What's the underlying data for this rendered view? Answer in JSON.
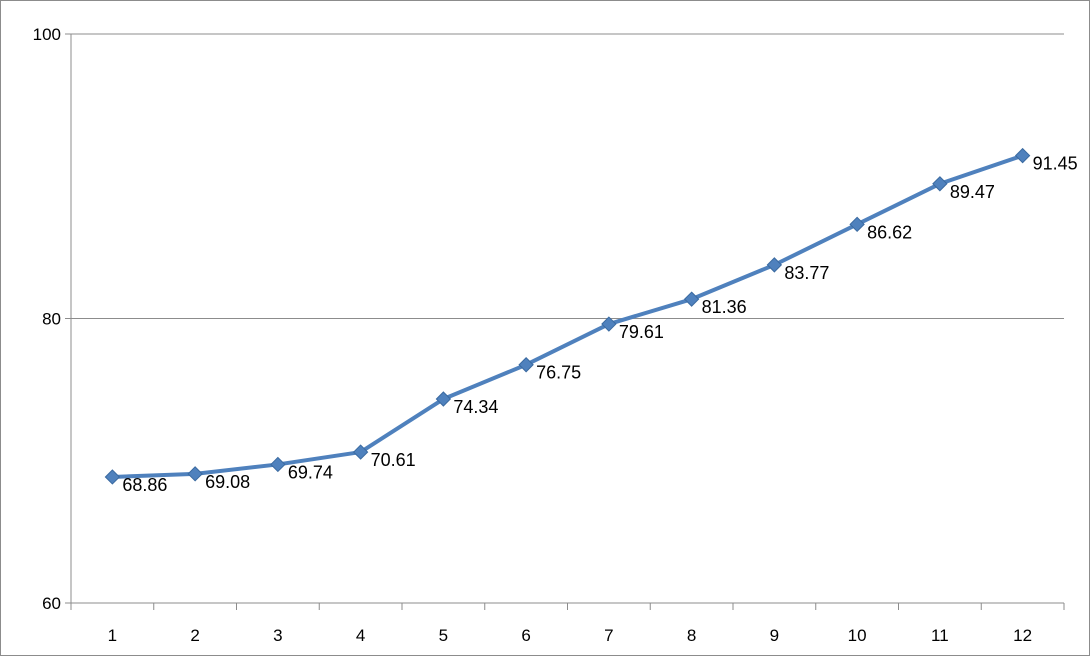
{
  "chart_data": {
    "type": "line",
    "title": "",
    "xlabel": "",
    "ylabel": "",
    "categories": [
      "1",
      "2",
      "3",
      "4",
      "5",
      "6",
      "7",
      "8",
      "9",
      "10",
      "11",
      "12"
    ],
    "series": [
      {
        "values": [
          68.86,
          69.08,
          69.74,
          70.61,
          74.34,
          76.75,
          79.61,
          81.36,
          83.77,
          86.62,
          89.47,
          91.45
        ]
      }
    ],
    "data_labels": [
      "68.86",
      "69.08",
      "69.74",
      "70.61",
      "74.34",
      "76.75",
      "79.61",
      "81.36",
      "83.77",
      "86.62",
      "89.47",
      "91.45"
    ],
    "ylim": [
      60,
      100
    ],
    "yticks": [
      "60",
      "80",
      "100"
    ],
    "ytick_values": [
      60,
      80,
      100
    ],
    "grid": "horizontal",
    "legend": "none",
    "colors": {
      "line": "#4f81bd",
      "grid": "#8c8c8c",
      "axis": "#8c8c8c"
    }
  }
}
